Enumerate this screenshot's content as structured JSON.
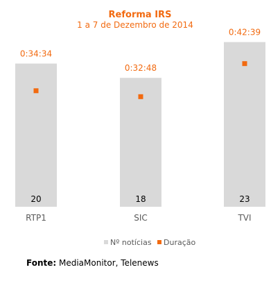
{
  "colors": {
    "accent": "#f26a10",
    "bar": "#d9d9d9",
    "text_gray": "#595959"
  },
  "source": {
    "label": "Fonte:",
    "text": " MediaMonitor, Telenews"
  },
  "chart_data": {
    "type": "bar",
    "title": "Reforma IRS",
    "subtitle": "1 a 7 de Dezembro de 2014",
    "categories": [
      "RTP1",
      "SIC",
      "TVI"
    ],
    "series": [
      {
        "name": "Nº notícias",
        "type": "bar",
        "values": [
          20,
          18,
          23
        ],
        "labels": [
          "20",
          "18",
          "23"
        ]
      },
      {
        "name": "Duração",
        "type": "scatter",
        "values_seconds": [
          2074,
          1968,
          2559
        ],
        "labels": [
          "0:34:34",
          "0:32:48",
          "0:42:39"
        ]
      }
    ],
    "bar_axis_max": 25,
    "duration_axis_max_seconds": 3200,
    "grid": false,
    "legend": "bottom"
  }
}
